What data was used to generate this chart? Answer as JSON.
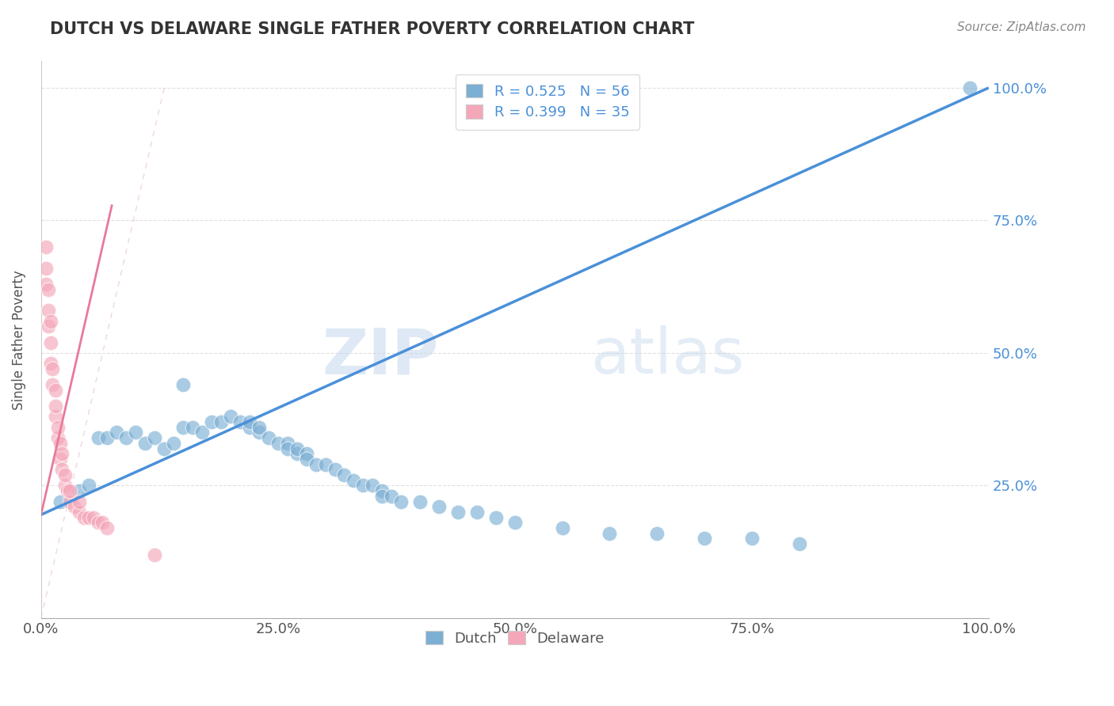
{
  "title": "DUTCH VS DELAWARE SINGLE FATHER POVERTY CORRELATION CHART",
  "source": "Source: ZipAtlas.com",
  "ylabel": "Single Father Poverty",
  "watermark_zip": "ZIP",
  "watermark_atlas": "atlas",
  "legend_r_dutch": "R = 0.525",
  "legend_n_dutch": "N = 56",
  "legend_r_delaware": "R = 0.399",
  "legend_n_delaware": "N = 35",
  "dutch_color": "#7bafd4",
  "delaware_color": "#f4a7b9",
  "trend_dutch_color": "#4a90d9",
  "trend_delaware_color": "#e87a9a",
  "dutch_color_edge": "white",
  "dutch_trend_x0": 0.0,
  "dutch_trend_y0": 0.195,
  "dutch_trend_x1": 1.0,
  "dutch_trend_y1": 1.0,
  "delaware_trend_x0": 0.0,
  "delaware_trend_y0": 0.195,
  "delaware_trend_x1": 0.075,
  "delaware_trend_y1": 0.78,
  "dutch_x": [
    0.02,
    0.04,
    0.05,
    0.06,
    0.07,
    0.08,
    0.09,
    0.1,
    0.11,
    0.12,
    0.13,
    0.14,
    0.15,
    0.15,
    0.16,
    0.17,
    0.18,
    0.19,
    0.2,
    0.21,
    0.22,
    0.22,
    0.23,
    0.23,
    0.24,
    0.25,
    0.26,
    0.26,
    0.27,
    0.27,
    0.28,
    0.28,
    0.29,
    0.3,
    0.31,
    0.32,
    0.33,
    0.34,
    0.35,
    0.36,
    0.36,
    0.37,
    0.38,
    0.4,
    0.42,
    0.44,
    0.46,
    0.48,
    0.5,
    0.55,
    0.6,
    0.65,
    0.7,
    0.75,
    0.8,
    0.98
  ],
  "dutch_y": [
    0.22,
    0.24,
    0.25,
    0.34,
    0.34,
    0.35,
    0.34,
    0.35,
    0.33,
    0.34,
    0.32,
    0.33,
    0.36,
    0.44,
    0.36,
    0.35,
    0.37,
    0.37,
    0.38,
    0.37,
    0.36,
    0.37,
    0.35,
    0.36,
    0.34,
    0.33,
    0.33,
    0.32,
    0.31,
    0.32,
    0.31,
    0.3,
    0.29,
    0.29,
    0.28,
    0.27,
    0.26,
    0.25,
    0.25,
    0.24,
    0.23,
    0.23,
    0.22,
    0.22,
    0.21,
    0.2,
    0.2,
    0.19,
    0.18,
    0.17,
    0.16,
    0.16,
    0.15,
    0.15,
    0.14,
    1.0
  ],
  "delaware_x": [
    0.005,
    0.005,
    0.005,
    0.008,
    0.008,
    0.008,
    0.01,
    0.01,
    0.01,
    0.012,
    0.012,
    0.015,
    0.015,
    0.015,
    0.018,
    0.018,
    0.02,
    0.02,
    0.022,
    0.022,
    0.025,
    0.025,
    0.028,
    0.03,
    0.03,
    0.035,
    0.04,
    0.04,
    0.045,
    0.05,
    0.055,
    0.06,
    0.065,
    0.07,
    0.12
  ],
  "delaware_y": [
    0.63,
    0.66,
    0.7,
    0.55,
    0.58,
    0.62,
    0.48,
    0.52,
    0.56,
    0.44,
    0.47,
    0.38,
    0.4,
    0.43,
    0.34,
    0.36,
    0.3,
    0.33,
    0.28,
    0.31,
    0.25,
    0.27,
    0.24,
    0.22,
    0.24,
    0.21,
    0.2,
    0.22,
    0.19,
    0.19,
    0.19,
    0.18,
    0.18,
    0.17,
    0.12
  ],
  "xlim": [
    0.0,
    1.0
  ],
  "ylim": [
    0.0,
    1.05
  ],
  "xticks": [
    0.0,
    0.25,
    0.5,
    0.75,
    1.0
  ],
  "xticklabels": [
    "0.0%",
    "25.0%",
    "50.0%",
    "75.0%",
    "100.0%"
  ],
  "ytick_positions": [
    0.25,
    0.5,
    0.75,
    1.0
  ],
  "yticklabels_right": [
    "25.0%",
    "50.0%",
    "75.0%",
    "100.0%"
  ],
  "background_color": "#ffffff",
  "grid_color": "#dddddd"
}
